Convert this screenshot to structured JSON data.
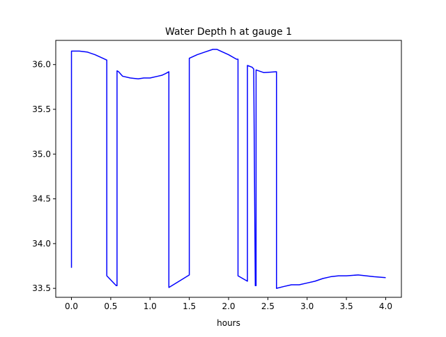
{
  "chart_data": {
    "type": "line",
    "title": "Water Depth h at gauge 1",
    "xlabel": "hours",
    "ylabel": "",
    "xlim": [
      -0.2,
      4.2
    ],
    "ylim": [
      33.4,
      36.27
    ],
    "xticks": [
      0.0,
      0.5,
      1.0,
      1.5,
      2.0,
      2.5,
      3.0,
      3.5,
      4.0
    ],
    "xtick_labels": [
      "0.0",
      "0.5",
      "1.0",
      "1.5",
      "2.0",
      "2.5",
      "3.0",
      "3.5",
      "4.0"
    ],
    "yticks": [
      33.5,
      34.0,
      34.5,
      35.0,
      35.5,
      36.0
    ],
    "ytick_labels": [
      "33.5",
      "34.0",
      "34.5",
      "35.0",
      "35.5",
      "36.0"
    ],
    "grid": false,
    "legend": "none",
    "series": [
      {
        "color": "#0000ff",
        "x": [
          0.0,
          0.0,
          0.1,
          0.2,
          0.3,
          0.4,
          0.45,
          0.45,
          0.57,
          0.58,
          0.58,
          0.6,
          0.65,
          0.75,
          0.85,
          0.92,
          1.0,
          1.1,
          1.15,
          1.2,
          1.24,
          1.24,
          1.5,
          1.5,
          1.6,
          1.7,
          1.8,
          1.85,
          1.9,
          2.0,
          2.1,
          2.12,
          2.12,
          2.24,
          2.24,
          2.3,
          2.32,
          2.34,
          2.34,
          2.35,
          2.35,
          2.45,
          2.61,
          2.61,
          2.7,
          2.8,
          2.9,
          3.0,
          3.1,
          3.2,
          3.3,
          3.4,
          3.5,
          3.65,
          3.75,
          3.85,
          4.0
        ],
        "y": [
          33.73,
          36.15,
          36.15,
          36.14,
          36.11,
          36.07,
          36.05,
          33.64,
          33.53,
          33.53,
          35.93,
          35.92,
          35.87,
          35.85,
          35.84,
          35.85,
          35.85,
          35.87,
          35.88,
          35.9,
          35.92,
          33.51,
          33.65,
          36.07,
          36.11,
          36.14,
          36.17,
          36.17,
          36.15,
          36.11,
          36.06,
          36.06,
          33.64,
          33.58,
          35.99,
          35.97,
          35.95,
          33.54,
          33.53,
          33.53,
          35.94,
          35.91,
          35.92,
          33.5,
          33.52,
          33.54,
          33.54,
          33.56,
          33.58,
          33.61,
          33.63,
          33.64,
          33.64,
          33.65,
          33.64,
          33.63,
          33.62
        ]
      }
    ]
  }
}
